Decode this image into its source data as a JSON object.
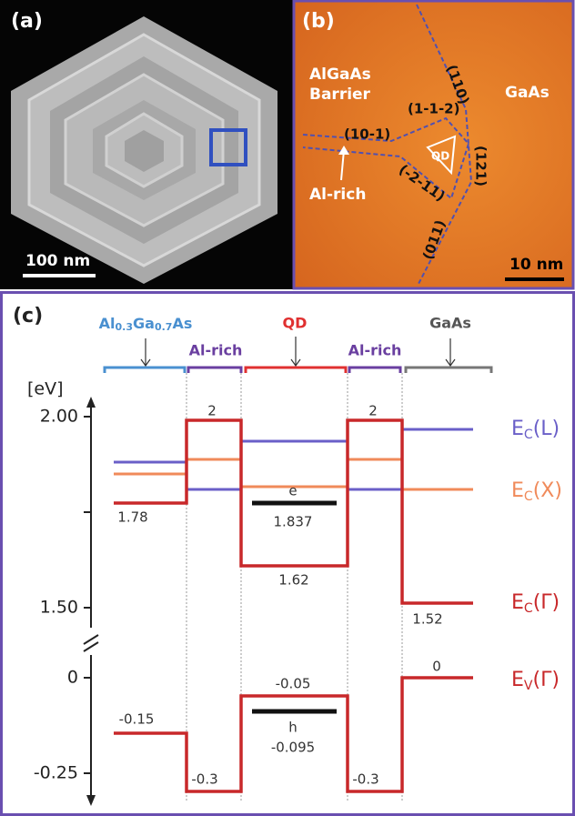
{
  "panels": [
    {
      "label": "(a)",
      "scale_bar": "100 nm"
    },
    {
      "label": "(b)",
      "texts": [
        "AlGaAs",
        "Barrier",
        "GaAs",
        "(110)",
        "(10-1)",
        "(1-1-2)",
        "QD",
        "(121)",
        "(-2-11)",
        "(011)",
        "Al-rich"
      ],
      "scale_bar": "10 nm"
    },
    {
      "label": "(c)",
      "unit": "[eV]",
      "ticks": [
        "2.00",
        "1.50",
        "0",
        "-0.25"
      ],
      "regions": [
        [
          "Al",
          "0.3",
          "Ga",
          "0.7",
          "As"
        ],
        [
          "Al-rich"
        ],
        [
          "QD"
        ],
        [
          "Al-rich"
        ],
        [
          "GaAs"
        ]
      ],
      "values": [
        "1.78",
        "2",
        "e",
        "1.837",
        "1.62",
        "2",
        "1.52",
        "0",
        "-0.05",
        "h",
        "-0.095",
        "-0.15",
        "-0.3",
        "-0.3"
      ],
      "bands": [
        {
          "main": "E",
          "sub": "C",
          "suffix": "(L)",
          "color": "#6a5fc8"
        },
        {
          "main": "E",
          "sub": "C",
          "suffix": "(X)",
          "color": "#f08a5a"
        },
        {
          "main": "E",
          "sub": "C",
          "suffix": "(Γ)",
          "color": "#c8282a"
        },
        {
          "main": "E",
          "sub": "V",
          "suffix": "(Γ)",
          "color": "#c8282a"
        }
      ]
    }
  ]
}
